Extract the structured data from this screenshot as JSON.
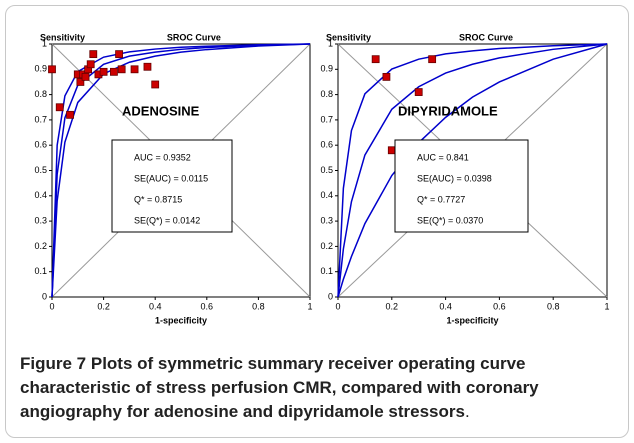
{
  "chart_data": [
    {
      "type": "scatter",
      "title": "SROC Curve",
      "ylabel": "Sensitivity",
      "xlabel": "1-specificity",
      "annotation": "ADENOSINE",
      "stats": [
        "AUC = 0.9352",
        "SE(AUC) = 0.0115",
        "Q* = 0.8715",
        "SE(Q*) = 0.0142"
      ],
      "xlim": [
        0,
        1
      ],
      "ylim": [
        0,
        1
      ],
      "xticks": [
        0,
        0.2,
        0.4,
        0.6,
        0.8,
        1
      ],
      "yticks": [
        0,
        0.1,
        0.2,
        0.3,
        0.4,
        0.5,
        0.6,
        0.7,
        0.8,
        0.9,
        1
      ],
      "point_color": "#cc0000",
      "points_x": [
        0.0,
        0.03,
        0.07,
        0.1,
        0.11,
        0.12,
        0.13,
        0.14,
        0.15,
        0.16,
        0.18,
        0.2,
        0.24,
        0.26,
        0.27,
        0.32,
        0.37,
        0.4
      ],
      "points_y": [
        0.9,
        0.75,
        0.72,
        0.88,
        0.85,
        0.88,
        0.87,
        0.9,
        0.92,
        0.96,
        0.88,
        0.89,
        0.89,
        0.96,
        0.9,
        0.9,
        0.91,
        0.84
      ],
      "curve_x": [
        0,
        0.02,
        0.05,
        0.1,
        0.2,
        0.3,
        0.4,
        0.5,
        0.6,
        0.8,
        1
      ],
      "curves": [
        {
          "color": "#0000cc",
          "values": [
            0,
            0.6,
            0.795,
            0.891,
            0.948,
            0.969,
            0.98,
            0.987,
            0.991,
            0.997,
            1
          ]
        },
        {
          "color": "#0000cc",
          "values": [
            0,
            0.485,
            0.708,
            0.837,
            0.92,
            0.952,
            0.968,
            0.979,
            0.986,
            0.995,
            1
          ]
        },
        {
          "color": "#0000cc",
          "values": [
            0,
            0.38,
            0.612,
            0.769,
            0.882,
            0.928,
            0.952,
            0.968,
            0.978,
            0.992,
            1
          ]
        }
      ]
    },
    {
      "type": "scatter",
      "title": "SROC Curve",
      "ylabel": "Sensitivity",
      "xlabel": "1-specificity",
      "annotation": "DIPYRIDAMOLE",
      "stats": [
        "AUC = 0.841",
        "SE(AUC) = 0.0398",
        "Q* = 0.7727",
        "SE(Q*) = 0.0370"
      ],
      "xlim": [
        0,
        1
      ],
      "ylim": [
        0,
        1
      ],
      "xticks": [
        0,
        0.2,
        0.4,
        0.6,
        0.8,
        1
      ],
      "yticks": [
        0,
        0.1,
        0.2,
        0.3,
        0.4,
        0.5,
        0.6,
        0.7,
        0.8,
        0.9,
        1
      ],
      "point_color": "#cc0000",
      "points_x": [
        0.14,
        0.18,
        0.3,
        0.35,
        0.2
      ],
      "points_y": [
        0.94,
        0.87,
        0.81,
        0.94,
        0.58
      ],
      "curve_x": [
        0,
        0.02,
        0.05,
        0.1,
        0.2,
        0.3,
        0.4,
        0.5,
        0.6,
        0.8,
        1
      ],
      "curves": [
        {
          "color": "#0000cc",
          "values": [
            0,
            0.43,
            0.658,
            0.803,
            0.901,
            0.94,
            0.961,
            0.973,
            0.982,
            0.993,
            1
          ]
        },
        {
          "color": "#0000cc",
          "values": [
            0,
            0.19,
            0.377,
            0.561,
            0.742,
            0.831,
            0.885,
            0.92,
            0.945,
            0.979,
            1
          ]
        },
        {
          "color": "#0000cc",
          "values": [
            0,
            0.07,
            0.16,
            0.29,
            0.48,
            0.61,
            0.71,
            0.79,
            0.85,
            0.94,
            1
          ]
        }
      ]
    }
  ],
  "caption": {
    "label": "Figure 7",
    "text": "Plots of symmetric summary receiver operating curve characteristic of stress perfusion CMR, compared with coronary angiography for adenosine and dipyridamole stressors",
    "end": "."
  }
}
